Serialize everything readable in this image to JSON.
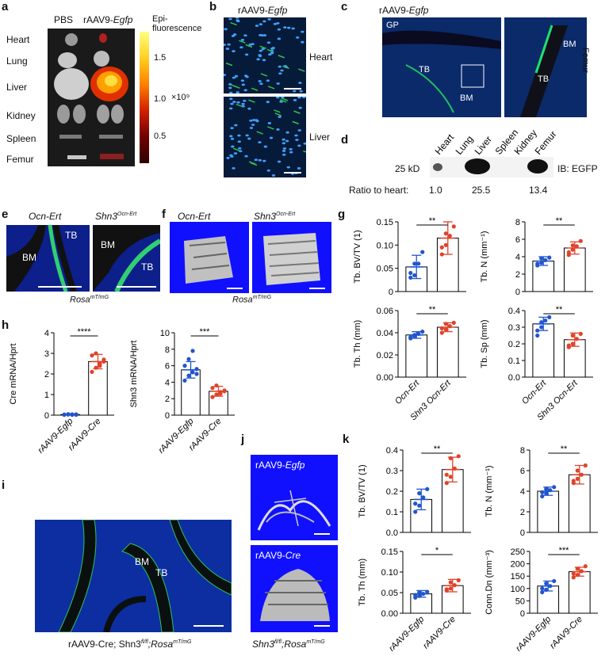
{
  "panels": {
    "a": "a",
    "b": "b",
    "c": "c",
    "d": "d",
    "e": "e",
    "f": "f",
    "g": "g",
    "h": "h",
    "i": "i",
    "j": "j",
    "k": "k"
  },
  "a": {
    "col_pbs": "PBS",
    "col_raav_prefix": "rAAV9-",
    "col_raav_gene": "Egfp",
    "organs": [
      "Heart",
      "Lung",
      "Liver",
      "Kidney",
      "Spleen",
      "Femur"
    ],
    "colorbar_title_1": "Epi-",
    "colorbar_title_2": "fluorescence",
    "colorbar_ticks": [
      "1.5",
      "1.0",
      "0.5"
    ],
    "colorbar_unit": "×10⁹",
    "colorbar_extra_tick": "1.5"
  },
  "b": {
    "title_prefix": "rAAV9-",
    "title_gene": "Egfp",
    "label_top": "Heart",
    "label_bottom": "Liver"
  },
  "c": {
    "title_prefix": "rAAV9-",
    "title_gene": "Egfp",
    "GP": "GP",
    "TB": "TB",
    "BM": "BM",
    "TB2": "TB",
    "BM2": "BM",
    "side": "Femur"
  },
  "d": {
    "lanes": [
      "Heart",
      "Lung",
      "Liver",
      "Spleen",
      "Kidney",
      "Femur"
    ],
    "marker": "25 kD",
    "ib": "IB: EGFP",
    "ratio_label": "Ratio to heart:",
    "ratios": [
      "1.0",
      "25.5",
      "13.4"
    ]
  },
  "e": {
    "left_title": "Ocn-Ert",
    "right_title_base": "Shn3",
    "right_title_sup": "Ocn-Ert",
    "BM": "BM",
    "TB": "TB",
    "BM2": "BM",
    "TB2": "TB",
    "caption_base": "Rosa",
    "caption_sup": "mT/mG"
  },
  "f": {
    "left_title": "Ocn-Ert",
    "right_title_base": "Shn3",
    "right_title_sup": "Ocn-Ert",
    "caption_base": "Rosa",
    "caption_sup": "mT/mG"
  },
  "h": {
    "xlabels": [
      "rAAV9-Egfp",
      "rAAV9-Cre"
    ]
  },
  "i": {
    "BM": "BM",
    "TB": "TB",
    "caption_1": "rAAV9-Cre; Shn3",
    "caption_sup1": "fl/fl",
    "caption_2": ";Rosa",
    "caption_sup2": "mT/mG"
  },
  "j": {
    "top_prefix": "rAAV9-",
    "top_gene": "Egfp",
    "bottom_prefix": "rAAV9-",
    "bottom_gene": "Cre",
    "caption_base": "Shn3",
    "caption_sup1": "fl/fl",
    "caption_mid": ";Rosa",
    "caption_sup2": "mT/mG"
  },
  "k": {
    "xlabels": [
      "rAAV9-Egfp",
      "rAAV9-Cre"
    ]
  },
  "chart_data": [
    {
      "id": "g1",
      "type": "bar",
      "ylabel": "Tb. BV/TV (1)",
      "ylim": [
        0,
        0.15
      ],
      "yticks": [
        "0",
        "0.05",
        "0.10",
        "0.15"
      ],
      "categories": [
        "Ocn-Ert",
        "Shn3 Ocn-Ert"
      ],
      "values": [
        0.053,
        0.115
      ],
      "err": [
        0.025,
        0.035
      ],
      "sig": "**",
      "points": [
        [
          0.03,
          0.035,
          0.06,
          0.085,
          0.04,
          0.06
        ],
        [
          0.08,
          0.1,
          0.12,
          0.14,
          0.095,
          0.125
        ]
      ]
    },
    {
      "id": "g2",
      "type": "bar",
      "ylabel": "Tb. N (mm⁻¹)",
      "ylim": [
        0,
        8
      ],
      "yticks": [
        "0",
        "2",
        "4",
        "6",
        "8"
      ],
      "categories": [
        "Ocn-Ert",
        "Shn3 Ocn-Ert"
      ],
      "values": [
        3.5,
        5.0
      ],
      "err": [
        0.5,
        0.7
      ],
      "sig": "**",
      "points": [
        [
          3.0,
          3.3,
          3.6,
          3.9,
          3.2,
          3.8
        ],
        [
          4.2,
          4.8,
          5.2,
          5.8,
          4.5,
          5.3
        ]
      ]
    },
    {
      "id": "g3",
      "type": "bar",
      "ylabel": "Tb. Th (mm)",
      "ylim": [
        0,
        0.06
      ],
      "yticks": [
        "0.00",
        "0.02",
        "0.04",
        "0.06"
      ],
      "categories": [
        "Ocn-Ert",
        "Shn3 Ocn-Ert"
      ],
      "values": [
        0.038,
        0.045
      ],
      "err": [
        0.003,
        0.004
      ],
      "sig": "**",
      "points": [
        [
          0.035,
          0.037,
          0.039,
          0.041,
          0.036,
          0.038
        ],
        [
          0.04,
          0.043,
          0.046,
          0.049,
          0.044,
          0.048
        ]
      ]
    },
    {
      "id": "g4",
      "type": "bar",
      "ylabel": "Tb. Sp (mm)",
      "ylim": [
        0,
        0.4
      ],
      "yticks": [
        "0.0",
        "0.1",
        "0.2",
        "0.3",
        "0.4"
      ],
      "categories": [
        "Ocn-Ert",
        "Shn3 Ocn-Ert"
      ],
      "values": [
        0.32,
        0.225
      ],
      "err": [
        0.04,
        0.04
      ],
      "sig": "**",
      "points": [
        [
          0.25,
          0.3,
          0.34,
          0.36,
          0.28,
          0.33
        ],
        [
          0.18,
          0.2,
          0.23,
          0.26,
          0.19,
          0.25
        ]
      ]
    },
    {
      "id": "h1",
      "type": "bar",
      "ylabel": "Cre mRNA/Hprt",
      "ylim": [
        0,
        4
      ],
      "yticks": [
        "0",
        "1",
        "2",
        "3",
        "4"
      ],
      "categories": [
        "rAAV9-Egfp",
        "rAAV9-Cre"
      ],
      "values": [
        0.03,
        2.6
      ],
      "err": [
        0.02,
        0.35
      ],
      "sig": "****",
      "points": [
        [
          0.02,
          0.03,
          0.04,
          0.02,
          0.03,
          0.05,
          0.02,
          0.04
        ],
        [
          2.1,
          2.3,
          2.5,
          2.7,
          2.9,
          3.0,
          2.4,
          2.6
        ]
      ]
    },
    {
      "id": "h2",
      "type": "bar",
      "ylabel": "Shn3 mRNA/Hprt",
      "ylim": [
        0,
        10
      ],
      "yticks": [
        "0",
        "2",
        "4",
        "6",
        "8",
        "10"
      ],
      "categories": [
        "rAAV9-Egfp",
        "rAAV9-Cre"
      ],
      "values": [
        5.5,
        2.9
      ],
      "err": [
        1.0,
        0.6
      ],
      "sig": "***",
      "points": [
        [
          4.2,
          4.8,
          5.2,
          5.6,
          6.0,
          6.8,
          7.8,
          5.0
        ],
        [
          2.2,
          2.5,
          2.8,
          3.0,
          3.3,
          3.6,
          2.6,
          2.9
        ]
      ]
    },
    {
      "id": "k1",
      "type": "bar",
      "ylabel": "Tb. BV/TV (1)",
      "ylim": [
        0,
        0.4
      ],
      "yticks": [
        "0.0",
        "0.1",
        "0.2",
        "0.3",
        "0.4"
      ],
      "categories": [
        "rAAV9-Egfp",
        "rAAV9-Cre"
      ],
      "values": [
        0.16,
        0.305
      ],
      "err": [
        0.05,
        0.06
      ],
      "sig": "**",
      "points": [
        [
          0.1,
          0.13,
          0.17,
          0.21,
          0.14,
          0.19
        ],
        [
          0.24,
          0.27,
          0.31,
          0.37,
          0.28,
          0.36
        ]
      ]
    },
    {
      "id": "k2",
      "type": "bar",
      "ylabel": "Tb. N (mm⁻¹)",
      "ylim": [
        0,
        8
      ],
      "yticks": [
        "0",
        "2",
        "4",
        "6",
        "8"
      ],
      "categories": [
        "rAAV9-Egfp",
        "rAAV9-Cre"
      ],
      "values": [
        4.0,
        5.6
      ],
      "err": [
        0.4,
        0.9
      ],
      "sig": "**",
      "points": [
        [
          3.5,
          3.8,
          4.1,
          4.4,
          3.9,
          4.2
        ],
        [
          4.8,
          5.2,
          5.6,
          6.5,
          5.0,
          6.0
        ]
      ]
    },
    {
      "id": "k3",
      "type": "bar",
      "ylabel": "Tb. Th (mm)",
      "ylim": [
        0,
        0.15
      ],
      "yticks": [
        "0.00",
        "0.05",
        "0.10",
        "0.15"
      ],
      "categories": [
        "rAAV9-Egfp",
        "rAAV9-Cre"
      ],
      "values": [
        0.047,
        0.067
      ],
      "err": [
        0.008,
        0.015
      ],
      "sig": "*",
      "points": [
        [
          0.038,
          0.042,
          0.047,
          0.052,
          0.044,
          0.05
        ],
        [
          0.055,
          0.06,
          0.068,
          0.08,
          0.058,
          0.075
        ]
      ]
    },
    {
      "id": "k4",
      "type": "bar",
      "ylabel": "Conn.Dn (mm⁻³)",
      "ylim": [
        0,
        250
      ],
      "yticks": [
        "0",
        "50",
        "100",
        "150",
        "200",
        "250"
      ],
      "categories": [
        "rAAV9-Egfp",
        "rAAV9-Cre"
      ],
      "values": [
        110,
        168
      ],
      "err": [
        20,
        18
      ],
      "sig": "***",
      "points": [
        [
          85,
          95,
          110,
          130,
          100,
          120
        ],
        [
          145,
          155,
          170,
          190,
          160,
          180
        ]
      ]
    }
  ]
}
